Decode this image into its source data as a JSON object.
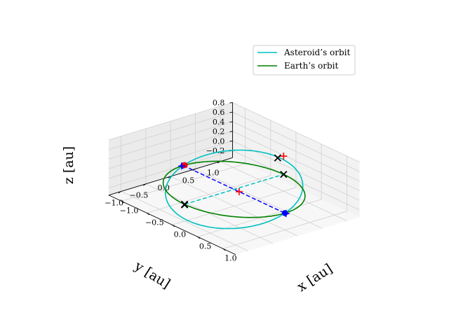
{
  "chart_data": {
    "type": "line",
    "projection": "3d",
    "grid": true,
    "legend_position": "top-right",
    "xlabel": "x [au]",
    "ylabel": "y [au]",
    "zlabel": "z [au]",
    "x_ticks": [
      "−1.0",
      "−0.5",
      "0.0",
      "0.5",
      "1.0"
    ],
    "y_ticks": [
      "1.0",
      "0.5",
      "0.0",
      "−0.5",
      "−1.0"
    ],
    "z_ticks": [
      "0.8",
      "0.6",
      "0.4",
      "0.2",
      "0.0",
      "−0.2"
    ],
    "xlim": [
      -1.25,
      1.25
    ],
    "ylim": [
      -1.25,
      1.25
    ],
    "zlim": [
      -0.35,
      0.8
    ],
    "series": [
      {
        "name": "Asteroid’s orbit",
        "color": "#00bfbf",
        "style": "solid",
        "semi_major_axis": 1.0,
        "inclination_deg": 21
      },
      {
        "name": "Earth’s orbit",
        "color": "#008000",
        "style": "solid",
        "semi_major_axis": 1.0,
        "inclination_deg": 0
      }
    ],
    "markers": [
      {
        "type": "line",
        "style": "dashed",
        "color": "#0000ff",
        "from": [
          -1.0,
          0.0,
          0.0
        ],
        "to": [
          1.0,
          0.0,
          0.0
        ]
      },
      {
        "type": "line",
        "style": "dashed",
        "color": "#00bfbf",
        "from": [
          0.0,
          -1.0,
          0.0
        ],
        "to": [
          0.0,
          1.0,
          0.0
        ]
      },
      {
        "type": "point",
        "marker": "circle",
        "color": "#0000ff",
        "xyz": [
          1.0,
          0.0,
          0.0
        ]
      },
      {
        "type": "point",
        "marker": "circle",
        "color": "#0000ff",
        "xyz": [
          -1.0,
          0.0,
          0.0
        ]
      },
      {
        "type": "point",
        "marker": "circle",
        "color": "#ff0000",
        "xyz": [
          -1.0,
          0.03,
          0.0
        ]
      },
      {
        "type": "point",
        "marker": "plus",
        "color": "#0000ff",
        "xyz": [
          1.02,
          0.0,
          0.0
        ]
      },
      {
        "type": "point",
        "marker": "plus",
        "color": "#0000ff",
        "xyz": [
          -1.0,
          -0.03,
          0.0
        ]
      },
      {
        "type": "point",
        "marker": "plus",
        "color": "#ff0000",
        "xyz": [
          0.0,
          1.0,
          0.38
        ]
      },
      {
        "type": "point",
        "marker": "plus",
        "color": "#ff0000",
        "xyz": [
          0.1,
          0.0,
          0.0
        ]
      },
      {
        "type": "point",
        "marker": "cross",
        "color": "#000000",
        "xyz": [
          0.0,
          1.0,
          0.0
        ]
      },
      {
        "type": "point",
        "marker": "cross",
        "color": "#000000",
        "xyz": [
          0.0,
          0.88,
          0.38
        ]
      },
      {
        "type": "point",
        "marker": "cross",
        "color": "#000000",
        "xyz": [
          0.0,
          -1.0,
          0.0
        ]
      },
      {
        "type": "point",
        "marker": "cross",
        "color": "#000000",
        "xyz": [
          0.0,
          -1.0,
          -0.01
        ]
      }
    ]
  }
}
